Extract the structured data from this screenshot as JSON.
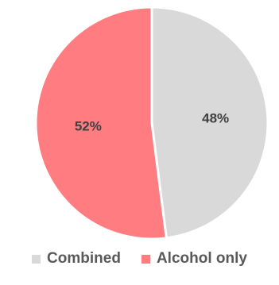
{
  "chart_data": {
    "type": "pie",
    "slices": [
      {
        "label": "Combined",
        "value": 48,
        "display": "48%",
        "color": "#d9d9d9"
      },
      {
        "label": "Alcohol only",
        "value": 52,
        "display": "52%",
        "color": "#ff7c80"
      }
    ],
    "legend_position": "bottom",
    "start_angle": "top, clockwise"
  }
}
